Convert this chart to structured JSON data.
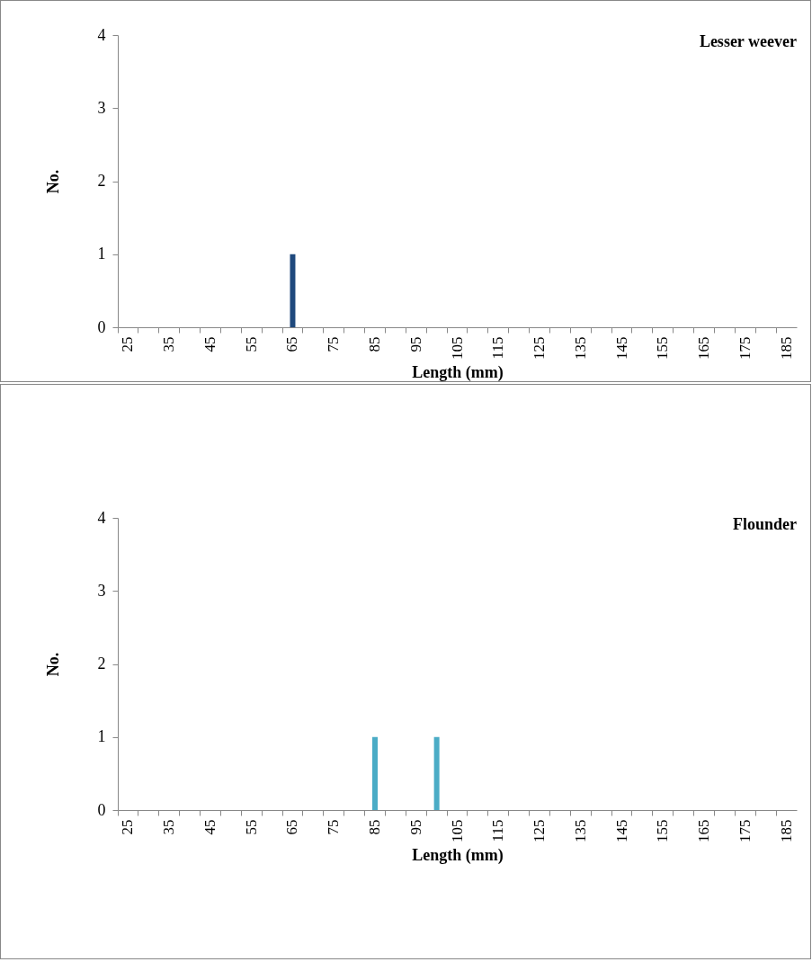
{
  "chart_data": [
    {
      "type": "bar",
      "title": "Lesser weever",
      "xlabel": "Length (mm)",
      "ylabel": "No.",
      "categories": [
        "25",
        null,
        "35",
        null,
        "45",
        null,
        "55",
        null,
        "65",
        null,
        "75",
        null,
        "85",
        null,
        "95",
        null,
        "105",
        null,
        "115",
        null,
        "125",
        null,
        "135",
        null,
        "145",
        null,
        "155",
        null,
        "165",
        null,
        "175",
        null,
        "185"
      ],
      "series": [
        {
          "color": "#1f497d",
          "values": [
            0,
            0,
            0,
            0,
            0,
            0,
            0,
            0,
            1,
            0,
            0,
            0,
            0,
            0,
            0,
            0,
            0,
            0,
            0,
            0,
            0,
            0,
            0,
            0,
            0,
            0,
            0,
            0,
            0,
            0,
            0,
            0,
            0
          ]
        }
      ],
      "ylim": [
        0,
        4
      ],
      "yticks": [
        0,
        1,
        2,
        3,
        4
      ],
      "grid": false,
      "legend": false
    },
    {
      "type": "bar",
      "title": "Flounder",
      "xlabel": "Length (mm)",
      "ylabel": "No.",
      "categories": [
        "25",
        null,
        "35",
        null,
        "45",
        null,
        "55",
        null,
        "65",
        null,
        "75",
        null,
        "85",
        null,
        "95",
        null,
        "105",
        null,
        "115",
        null,
        "125",
        null,
        "135",
        null,
        "145",
        null,
        "155",
        null,
        "165",
        null,
        "175",
        null,
        "185"
      ],
      "series": [
        {
          "color": "#4bacc6",
          "values": [
            0,
            0,
            0,
            0,
            0,
            0,
            0,
            0,
            0,
            0,
            0,
            0,
            1,
            0,
            0,
            1,
            0,
            0,
            0,
            0,
            0,
            0,
            0,
            0,
            0,
            0,
            0,
            0,
            0,
            0,
            0,
            0,
            0
          ]
        }
      ],
      "ylim": [
        0,
        4
      ],
      "yticks": [
        0,
        1,
        2,
        3,
        4
      ],
      "grid": false,
      "legend": false
    }
  ]
}
